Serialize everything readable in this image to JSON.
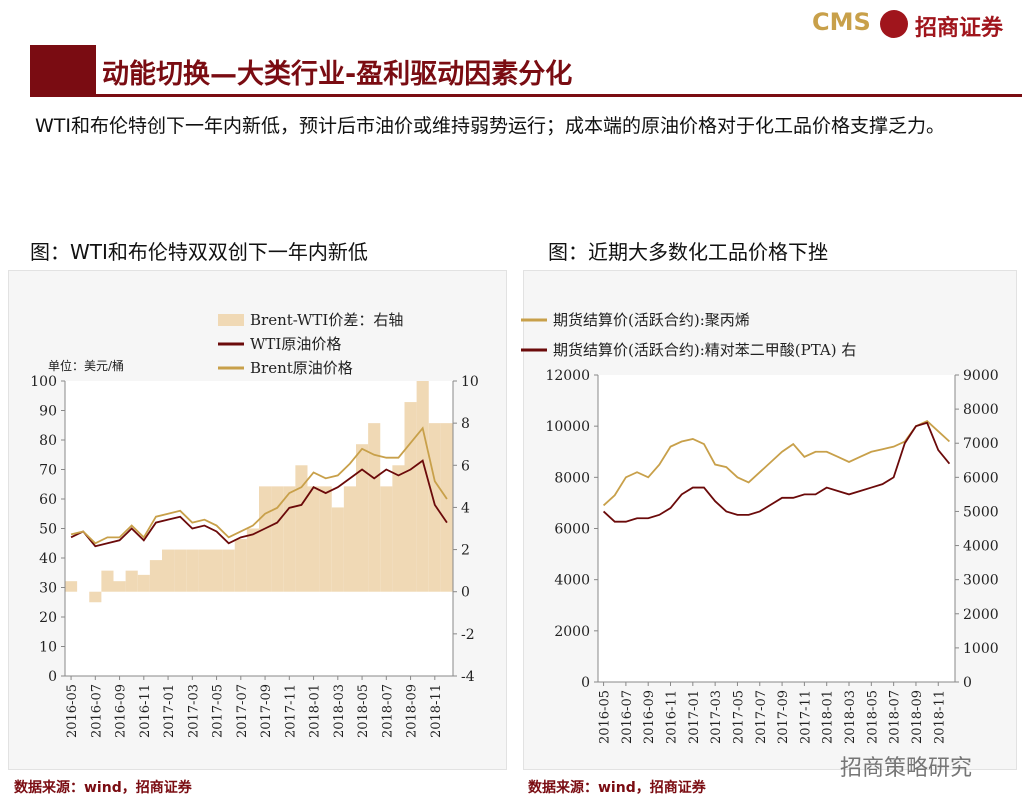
{
  "header": {
    "title": "动能切换—大类行业-盈利驱动因素分化"
  },
  "logo": {
    "brand": "CMS",
    "name": "招商证券"
  },
  "subtitle": "WTI和布伦特创下一年内新低，预计后市油价或维持弱势运行；成本端的原油价格对于化工品价格支撑乏力。",
  "watermark": "招商策略研究",
  "chart_data": [
    {
      "type": "line",
      "title": "图：WTI和布伦特双双创下一年内新低",
      "unit_label": "单位：美元/桶",
      "source": "数据来源：wind，招商证券",
      "categories": [
        "2016-05",
        null,
        "2016-07",
        null,
        "2016-09",
        null,
        "2016-11",
        null,
        "2017-01",
        null,
        "2017-03",
        null,
        "2017-05",
        null,
        "2017-07",
        null,
        "2017-09",
        null,
        "2017-11",
        null,
        "2018-01",
        null,
        "2018-03",
        null,
        "2018-05",
        null,
        "2018-07",
        null,
        "2018-09",
        null,
        "2018-11",
        null
      ],
      "series": [
        {
          "name": "Brent-WTI价差：右轴",
          "type": "bar",
          "axis": "y2",
          "color": "#f0d9b5",
          "values": [
            0.5,
            0,
            -0.5,
            1,
            0.5,
            1,
            0.8,
            1.5,
            2,
            2,
            2,
            2,
            2,
            2,
            2.5,
            3,
            5,
            5,
            5,
            6,
            5,
            5,
            4,
            5,
            7,
            8,
            5,
            6,
            9,
            10,
            8,
            8
          ]
        },
        {
          "name": "WTI原油价格",
          "color": "#6b0a0a",
          "values": [
            47,
            49,
            44,
            45,
            46,
            50,
            46,
            52,
            53,
            54,
            50,
            51,
            49,
            45,
            47,
            48,
            50,
            52,
            57,
            58,
            64,
            62,
            64,
            67,
            70,
            67,
            70,
            68,
            70,
            73,
            58,
            52
          ]
        },
        {
          "name": "Brent原油价格",
          "color": "#c8a04a",
          "values": [
            48,
            49,
            45,
            47,
            47,
            51,
            47,
            54,
            55,
            56,
            52,
            53,
            51,
            47,
            49,
            51,
            55,
            57,
            62,
            64,
            69,
            67,
            68,
            72,
            77,
            75,
            74,
            74,
            79,
            84,
            66,
            60
          ]
        }
      ],
      "ylim": [
        0,
        100
      ],
      "yticks": [
        0,
        10,
        20,
        30,
        40,
        50,
        60,
        70,
        80,
        90,
        100
      ],
      "y2lim": [
        -4,
        10
      ],
      "y2ticks": [
        -4,
        -2,
        0,
        2,
        4,
        6,
        8,
        10
      ]
    },
    {
      "type": "line",
      "title": "图：近期大多数化工品价格下挫",
      "source": "数据来源：wind，招商证券",
      "categories": [
        "2016-05",
        null,
        "2016-07",
        null,
        "2016-09",
        null,
        "2016-11",
        null,
        "2017-01",
        null,
        "2017-03",
        null,
        "2017-05",
        null,
        "2017-07",
        null,
        "2017-09",
        null,
        "2017-11",
        null,
        "2018-01",
        null,
        "2018-03",
        null,
        "2018-05",
        null,
        "2018-07",
        null,
        "2018-09",
        null,
        "2018-11",
        null
      ],
      "series": [
        {
          "name": "期货结算价(活跃合约):聚丙烯",
          "color": "#c8a04a",
          "values": [
            6900,
            7300,
            8000,
            8200,
            8000,
            8500,
            9200,
            9400,
            9500,
            9300,
            8500,
            8400,
            8000,
            7800,
            8200,
            8600,
            9000,
            9300,
            8800,
            9000,
            9000,
            8800,
            8600,
            8800,
            9000,
            9100,
            9200,
            9400,
            10000,
            10200,
            9800,
            9400
          ]
        },
        {
          "name": "期货结算价(活跃合约):精对苯二甲酸(PTA) 右",
          "axis": "y2",
          "color": "#6b0a0a",
          "values": [
            5000,
            4700,
            4700,
            4800,
            4800,
            4900,
            5100,
            5500,
            5700,
            5700,
            5300,
            5000,
            4900,
            4900,
            5000,
            5200,
            5400,
            5400,
            5500,
            5500,
            5700,
            5600,
            5500,
            5600,
            5700,
            5800,
            6000,
            7000,
            7500,
            7600,
            6800,
            6400
          ]
        }
      ],
      "ylim": [
        0,
        12000
      ],
      "yticks": [
        0,
        2000,
        4000,
        6000,
        8000,
        10000,
        12000
      ],
      "y2lim": [
        0,
        9000
      ],
      "y2ticks": [
        0,
        1000,
        2000,
        3000,
        4000,
        5000,
        6000,
        7000,
        8000,
        9000
      ]
    }
  ]
}
